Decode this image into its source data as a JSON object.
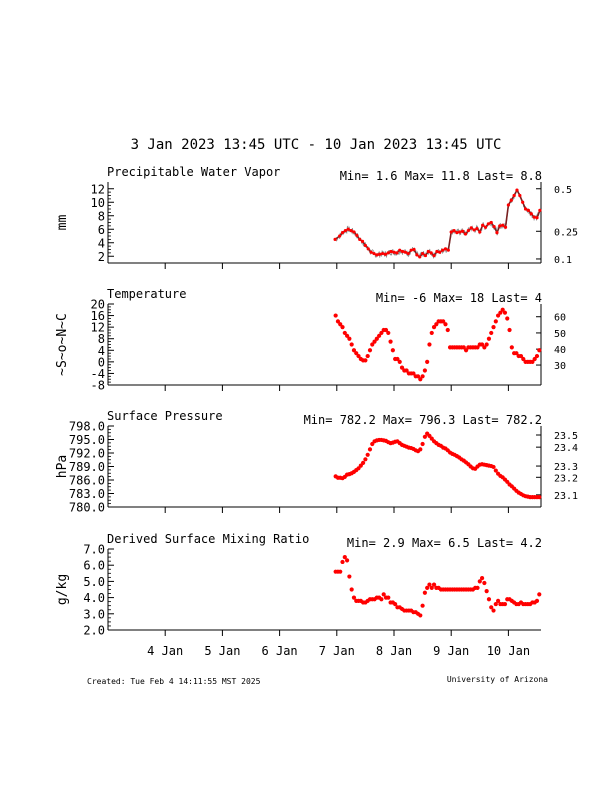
{
  "header": {
    "title": "3 Jan 2023 13:45 UTC - 10 Jan 2023 13:45 UTC"
  },
  "footer": {
    "created": "Created: Tue Feb  4 14:11:55 MST 2025",
    "org": "University of Arizona"
  },
  "colors": {
    "data": "#ff0000",
    "pwv_line": "#7a2020",
    "pwv_noise": "#8c8c8c",
    "axes": "#000000"
  },
  "x_axis": {
    "range_days": [
      3.0,
      10.57
    ],
    "ticks": [
      {
        "label": "4 Jan",
        "day": 4
      },
      {
        "label": "5 Jan",
        "day": 5
      },
      {
        "label": "6 Jan",
        "day": 6
      },
      {
        "label": "7 Jan",
        "day": 7
      },
      {
        "label": "8 Jan",
        "day": 8
      },
      {
        "label": "9 Jan",
        "day": 9
      },
      {
        "label": "10 Jan",
        "day": 10
      }
    ]
  },
  "chart_data": [
    {
      "type": "line",
      "title": "Precipitable Water Vapor",
      "stats": "Min= 1.6 Max= 11.8 Last= 8.8",
      "ylabel": "mm",
      "ylim": [
        1,
        13
      ],
      "yticks": [
        "2",
        "4",
        "6",
        "8",
        "10",
        "12"
      ],
      "right_axis": [
        {
          "label": "0.5",
          "y": 12.0
        },
        {
          "label": "0.25",
          "y": 5.7
        },
        {
          "label": "0.1",
          "y": 1.6
        }
      ],
      "x": [
        6.97,
        7.05,
        7.1,
        7.15,
        7.2,
        7.25,
        7.3,
        7.35,
        7.4,
        7.45,
        7.5,
        7.55,
        7.6,
        7.65,
        7.7,
        7.75,
        7.8,
        7.85,
        7.9,
        7.95,
        8.0,
        8.05,
        8.1,
        8.15,
        8.2,
        8.25,
        8.3,
        8.35,
        8.4,
        8.45,
        8.5,
        8.55,
        8.6,
        8.65,
        8.7,
        8.75,
        8.8,
        8.85,
        8.9,
        8.95,
        9.0,
        9.05,
        9.1,
        9.15,
        9.2,
        9.25,
        9.3,
        9.35,
        9.4,
        9.45,
        9.5,
        9.55,
        9.6,
        9.65,
        9.7,
        9.75,
        9.8,
        9.85,
        9.9,
        9.95,
        10.0,
        10.05,
        10.1,
        10.15,
        10.2,
        10.25,
        10.3,
        10.35,
        10.4,
        10.45,
        10.5,
        10.55
      ],
      "values": [
        4.5,
        5.0,
        5.5,
        5.8,
        6.0,
        5.8,
        5.6,
        5.1,
        4.5,
        4.2,
        3.6,
        3.1,
        2.6,
        2.4,
        2.2,
        2.3,
        2.4,
        2.3,
        2.5,
        2.7,
        2.6,
        2.5,
        2.9,
        2.7,
        2.6,
        2.4,
        2.9,
        3.0,
        2.2,
        1.9,
        2.4,
        2.1,
        2.7,
        2.5,
        2.1,
        2.7,
        2.6,
        2.9,
        3.1,
        2.9,
        5.6,
        5.8,
        5.5,
        5.6,
        5.7,
        5.3,
        5.8,
        6.2,
        5.9,
        6.1,
        5.6,
        6.6,
        6.3,
        6.8,
        7.0,
        6.4,
        5.5,
        6.5,
        6.6,
        6.3,
        9.6,
        10.3,
        11.0,
        11.8,
        11.0,
        10.0,
        9.0,
        8.8,
        8.3,
        7.8,
        7.7,
        8.8
      ]
    },
    {
      "type": "scatter",
      "title": "Temperature",
      "stats": "Min= -6 Max= 18 Last= 4",
      "ylabel": "~S~o~N~C",
      "ylim": [
        -8,
        20
      ],
      "yticks": [
        "-8",
        "-4",
        "0",
        "4",
        "8",
        "12",
        "16",
        "20"
      ],
      "right_axis": [
        {
          "label": "60",
          "y": 15.6
        },
        {
          "label": "50",
          "y": 10.0
        },
        {
          "label": "40",
          "y": 4.4
        },
        {
          "label": "30",
          "y": -1.1
        }
      ],
      "x": [
        6.98,
        7.02,
        7.06,
        7.1,
        7.14,
        7.18,
        7.22,
        7.26,
        7.3,
        7.34,
        7.38,
        7.42,
        7.46,
        7.5,
        7.54,
        7.58,
        7.62,
        7.66,
        7.7,
        7.74,
        7.78,
        7.82,
        7.86,
        7.9,
        7.94,
        7.98,
        8.02,
        8.06,
        8.1,
        8.14,
        8.18,
        8.22,
        8.26,
        8.3,
        8.34,
        8.38,
        8.42,
        8.46,
        8.5,
        8.54,
        8.58,
        8.62,
        8.66,
        8.7,
        8.74,
        8.78,
        8.82,
        8.86,
        8.9,
        8.94,
        8.98,
        9.02,
        9.06,
        9.1,
        9.14,
        9.18,
        9.22,
        9.26,
        9.3,
        9.34,
        9.38,
        9.42,
        9.46,
        9.5,
        9.54,
        9.58,
        9.62,
        9.66,
        9.7,
        9.74,
        9.78,
        9.82,
        9.86,
        9.9,
        9.94,
        9.98,
        10.02,
        10.06,
        10.1,
        10.14,
        10.18,
        10.22,
        10.26,
        10.3,
        10.34,
        10.38,
        10.42,
        10.46,
        10.5,
        10.54
      ],
      "values": [
        16,
        14,
        13,
        12,
        10,
        9,
        8,
        6,
        4,
        3,
        2,
        1,
        0.5,
        0.5,
        2,
        4,
        6,
        7,
        8,
        9,
        10,
        11,
        11,
        10,
        7,
        4,
        1,
        1,
        0,
        -2,
        -3,
        -3,
        -4,
        -4,
        -4,
        -5,
        -5,
        -6,
        -5,
        -3,
        0,
        6,
        10,
        12,
        13,
        14,
        14,
        14,
        13,
        11,
        5,
        5,
        5,
        5,
        5,
        5,
        5,
        4,
        5,
        5,
        5,
        5,
        5,
        6,
        6,
        5,
        6,
        8,
        10,
        12,
        14,
        16,
        17,
        18,
        17,
        15,
        11,
        5,
        3,
        3,
        2,
        2,
        1,
        0,
        0,
        0,
        0,
        1,
        2,
        4
      ]
    },
    {
      "type": "scatter",
      "title": "Surface Pressure",
      "stats": "Min= 782.2 Max= 796.3 Last= 782.2",
      "ylabel": "hPa",
      "ylim": [
        780,
        798
      ],
      "yticks": [
        "780.0",
        "783.0",
        "786.0",
        "789.0",
        "792.0",
        "795.0",
        "798.0"
      ],
      "right_axis": [
        {
          "label": "23.5",
          "y": 796.0
        },
        {
          "label": "23.4",
          "y": 793.3
        },
        {
          "label": "23.3",
          "y": 789.1
        },
        {
          "label": "23.2",
          "y": 786.6
        },
        {
          "label": "23.1",
          "y": 782.7
        }
      ],
      "x": [
        6.98,
        7.02,
        7.06,
        7.1,
        7.14,
        7.18,
        7.22,
        7.26,
        7.3,
        7.34,
        7.38,
        7.42,
        7.46,
        7.5,
        7.54,
        7.58,
        7.62,
        7.66,
        7.7,
        7.74,
        7.78,
        7.82,
        7.86,
        7.9,
        7.94,
        7.98,
        8.02,
        8.06,
        8.1,
        8.14,
        8.18,
        8.22,
        8.26,
        8.3,
        8.34,
        8.38,
        8.42,
        8.46,
        8.5,
        8.54,
        8.58,
        8.62,
        8.66,
        8.7,
        8.74,
        8.78,
        8.82,
        8.86,
        8.9,
        8.94,
        8.98,
        9.02,
        9.06,
        9.1,
        9.14,
        9.18,
        9.22,
        9.26,
        9.3,
        9.34,
        9.38,
        9.42,
        9.46,
        9.5,
        9.54,
        9.58,
        9.62,
        9.66,
        9.7,
        9.74,
        9.78,
        9.82,
        9.86,
        9.9,
        9.94,
        9.98,
        10.02,
        10.06,
        10.1,
        10.14,
        10.18,
        10.22,
        10.26,
        10.3,
        10.34,
        10.38,
        10.42,
        10.46,
        10.5,
        10.54
      ],
      "values": [
        786.8,
        786.5,
        786.5,
        786.4,
        786.7,
        787.2,
        787.3,
        787.5,
        787.8,
        788.2,
        788.6,
        789.2,
        789.8,
        790.6,
        791.6,
        792.8,
        794.0,
        794.6,
        794.8,
        794.9,
        794.9,
        794.8,
        794.7,
        794.4,
        794.2,
        794.3,
        794.5,
        794.6,
        794.2,
        793.8,
        793.6,
        793.4,
        793.2,
        793.1,
        792.9,
        792.6,
        792.4,
        792.8,
        794.0,
        795.6,
        796.3,
        795.8,
        795.2,
        794.6,
        794.2,
        793.8,
        793.6,
        793.2,
        793.0,
        792.6,
        792.1,
        791.8,
        791.6,
        791.3,
        791.0,
        790.6,
        790.3,
        789.9,
        789.5,
        789.0,
        788.6,
        788.5,
        789.0,
        789.4,
        789.5,
        789.4,
        789.3,
        789.2,
        789.1,
        788.9,
        788.1,
        787.4,
        786.9,
        786.6,
        786.1,
        785.6,
        785.0,
        784.6,
        784.1,
        783.6,
        783.2,
        782.9,
        782.6,
        782.4,
        782.3,
        782.2,
        782.2,
        782.2,
        782.2,
        782.2
      ]
    },
    {
      "type": "scatter",
      "title": "Derived Surface Mixing Ratio",
      "stats": "Min= 2.9 Max= 6.5 Last= 4.2",
      "ylabel": "g/kg",
      "ylim": [
        2.0,
        7.0
      ],
      "yticks": [
        "2.0",
        "3.0",
        "4.0",
        "5.0",
        "6.0",
        "7.0"
      ],
      "x": [
        6.98,
        7.02,
        7.06,
        7.1,
        7.14,
        7.18,
        7.22,
        7.26,
        7.3,
        7.34,
        7.38,
        7.42,
        7.46,
        7.5,
        7.54,
        7.58,
        7.62,
        7.66,
        7.7,
        7.74,
        7.78,
        7.82,
        7.86,
        7.9,
        7.94,
        7.98,
        8.02,
        8.06,
        8.1,
        8.14,
        8.18,
        8.22,
        8.26,
        8.3,
        8.34,
        8.38,
        8.42,
        8.46,
        8.5,
        8.54,
        8.58,
        8.62,
        8.66,
        8.7,
        8.74,
        8.78,
        8.82,
        8.86,
        8.9,
        8.94,
        8.98,
        9.02,
        9.06,
        9.1,
        9.14,
        9.18,
        9.22,
        9.26,
        9.3,
        9.34,
        9.38,
        9.42,
        9.46,
        9.5,
        9.54,
        9.58,
        9.62,
        9.66,
        9.7,
        9.74,
        9.78,
        9.82,
        9.86,
        9.9,
        9.94,
        9.98,
        10.02,
        10.06,
        10.1,
        10.14,
        10.18,
        10.22,
        10.26,
        10.3,
        10.34,
        10.38,
        10.42,
        10.46,
        10.5,
        10.54
      ],
      "values": [
        5.6,
        5.6,
        5.6,
        6.2,
        6.5,
        6.3,
        5.3,
        4.5,
        4.0,
        3.8,
        3.8,
        3.8,
        3.7,
        3.7,
        3.8,
        3.9,
        3.9,
        3.9,
        4.0,
        4.0,
        3.9,
        4.2,
        4.0,
        4.0,
        3.7,
        3.7,
        3.6,
        3.4,
        3.4,
        3.3,
        3.2,
        3.2,
        3.2,
        3.2,
        3.1,
        3.1,
        3.0,
        2.9,
        3.5,
        4.3,
        4.6,
        4.8,
        4.6,
        4.8,
        4.6,
        4.6,
        4.5,
        4.5,
        4.5,
        4.5,
        4.5,
        4.5,
        4.5,
        4.5,
        4.5,
        4.5,
        4.5,
        4.5,
        4.5,
        4.5,
        4.5,
        4.6,
        4.6,
        5.0,
        5.2,
        4.9,
        4.4,
        3.9,
        3.4,
        3.2,
        3.6,
        3.8,
        3.6,
        3.6,
        3.6,
        3.9,
        3.9,
        3.8,
        3.7,
        3.6,
        3.6,
        3.7,
        3.6,
        3.6,
        3.6,
        3.6,
        3.7,
        3.7,
        3.8,
        4.2
      ]
    }
  ]
}
